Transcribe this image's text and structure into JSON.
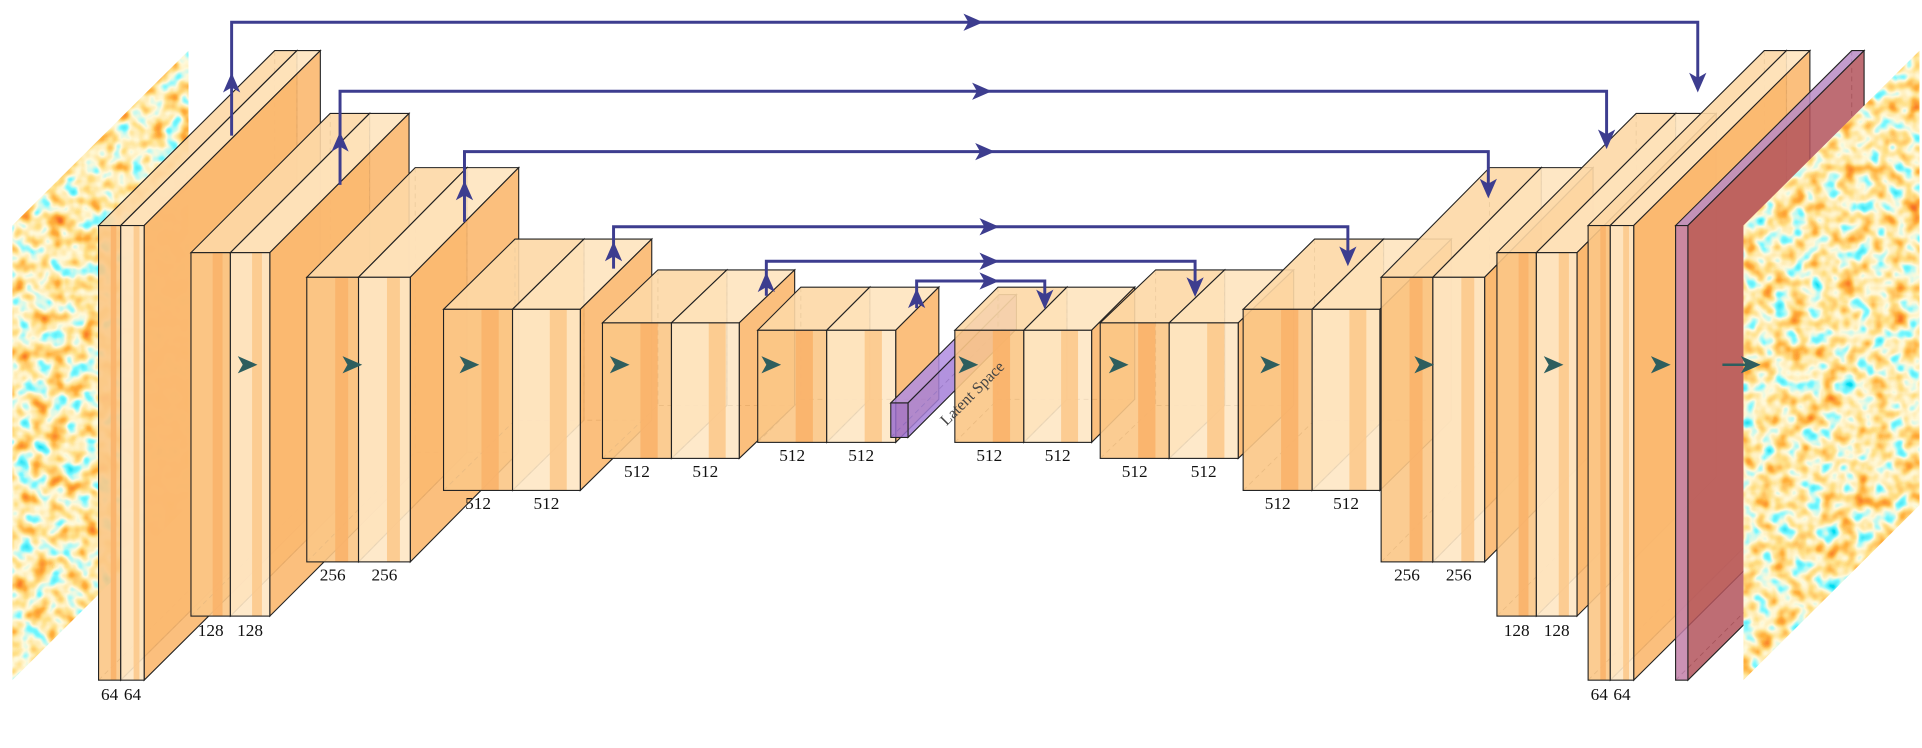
{
  "blocks": [
    {
      "labels": [
        "64",
        "64"
      ]
    },
    {
      "labels": [
        "128",
        "128"
      ]
    },
    {
      "labels": [
        "256",
        "256"
      ]
    },
    {
      "labels": [
        "512",
        "512"
      ]
    },
    {
      "labels": [
        "512",
        "512"
      ]
    },
    {
      "labels": [
        "512",
        "512"
      ]
    },
    {
      "labels": [
        "512",
        "512"
      ]
    },
    {
      "labels": [
        "512",
        "512"
      ]
    },
    {
      "labels": [
        "512",
        "512"
      ]
    },
    {
      "labels": [
        "256",
        "256"
      ]
    },
    {
      "labels": [
        "128",
        "128"
      ]
    },
    {
      "labels": [
        "64",
        "64"
      ]
    }
  ],
  "latent": {
    "label": "Latent Space"
  }
}
